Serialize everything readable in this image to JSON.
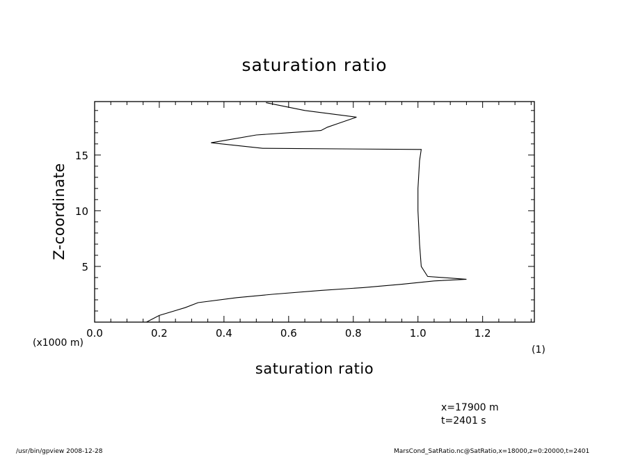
{
  "chart_data": {
    "type": "line",
    "title": "saturation ratio",
    "xlabel": "saturation ratio",
    "xunit": "(1)",
    "ylabel": "Z-coordinate",
    "yunit": "(x1000 m)",
    "xlim": [
      0.0,
      1.36
    ],
    "ylim": [
      0.0,
      19.8
    ],
    "xticks": [
      "0.0",
      "0.2",
      "0.4",
      "0.6",
      "0.8",
      "1.0",
      "1.2"
    ],
    "xtick_values": [
      0.0,
      0.2,
      0.4,
      0.6,
      0.8,
      1.0,
      1.2
    ],
    "yticks": [
      "5",
      "10",
      "15"
    ],
    "ytick_values": [
      5,
      10,
      15
    ],
    "grid": false,
    "series": [
      {
        "x": [
          0.16,
          0.2,
          0.28,
          0.32,
          0.44,
          0.55,
          0.7,
          0.83,
          0.95,
          1.05,
          1.15,
          1.03,
          1.01,
          1.005,
          1.0,
          1.0,
          1.005,
          1.01,
          0.52,
          0.36,
          0.42,
          0.5,
          0.6,
          0.7,
          0.72,
          0.75,
          0.81,
          0.65,
          0.53
        ],
        "y": [
          0.0,
          0.6,
          1.3,
          1.75,
          2.2,
          2.5,
          2.85,
          3.1,
          3.4,
          3.7,
          3.85,
          4.1,
          5.0,
          7.0,
          10.0,
          12.0,
          14.5,
          15.5,
          15.6,
          16.1,
          16.4,
          16.8,
          17.0,
          17.2,
          17.5,
          17.8,
          18.4,
          19.0,
          19.7
        ]
      }
    ]
  },
  "annotations": {
    "coord_x": "x=17900  m",
    "coord_t": "t=2401  s"
  },
  "footer": {
    "left": "/usr/bin/gpview   2008-12-28",
    "right": "MarsCond_SatRatio.nc@SatRatio,x=18000,z=0:20000,t=2401"
  }
}
